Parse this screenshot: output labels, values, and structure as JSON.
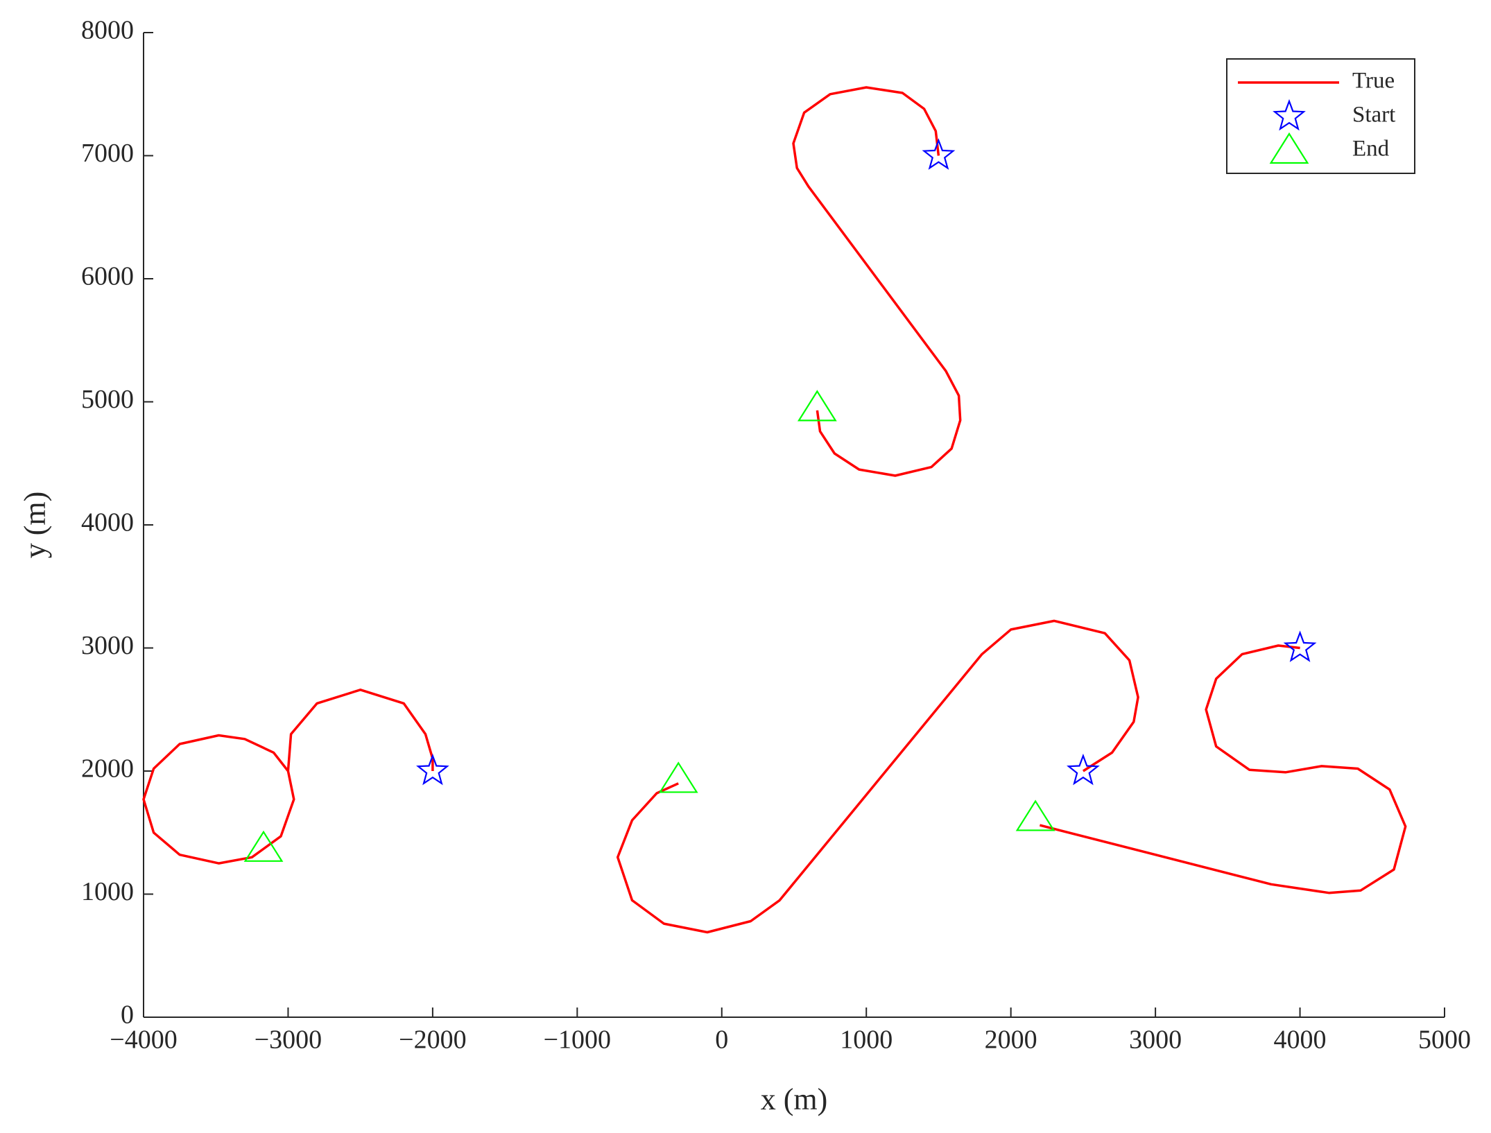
{
  "chart_data": {
    "type": "line",
    "xlabel": "x (m)",
    "ylabel": "y (m)",
    "xlim": [
      -4000,
      5000
    ],
    "xticks": [
      {
        "value": -4000,
        "label": "−4000"
      },
      {
        "value": -3000,
        "label": "−3000"
      },
      {
        "value": -2000,
        "label": "−2000"
      },
      {
        "value": -1000,
        "label": "−1000"
      },
      0,
      1000,
      2000,
      3000,
      4000,
      5000
    ],
    "ylim": [
      0,
      8000
    ],
    "yticks": [
      0,
      1000,
      2000,
      3000,
      4000,
      5000,
      6000,
      7000,
      8000
    ],
    "legend": "upper right",
    "series": [
      {
        "name": "True",
        "color": "#ff0000",
        "kind": "line",
        "x": [
          1500,
          1480,
          1400,
          1250,
          1000,
          750,
          570,
          495,
          520,
          600,
          1550,
          1640,
          1650,
          1590,
          1450,
          1200,
          950,
          780,
          680,
          660,
          null,
          -2000,
          -2000,
          -2050,
          -2200,
          -2500,
          -2800,
          -2980,
          -3000,
          -2960,
          -3050,
          -3250,
          -3480,
          -3750,
          -3930,
          -4000,
          -3930,
          -3750,
          -3480,
          -3300,
          -3100,
          -3000,
          null,
          2500,
          2700,
          2850,
          2880,
          2820,
          2650,
          2300,
          2000,
          1800,
          400,
          200,
          -100,
          -400,
          -620,
          -720,
          -620,
          -450,
          -300,
          null,
          4000,
          3850,
          3600,
          3420,
          3350,
          3420,
          3650,
          3900,
          4150,
          4400,
          4620,
          4730,
          4650,
          4420,
          4200,
          3800,
          2200
        ],
        "y": [
          7000,
          7200,
          7380,
          7510,
          7555,
          7500,
          7350,
          7100,
          6900,
          6750,
          5250,
          5050,
          4850,
          4620,
          4470,
          4400,
          4450,
          4580,
          4760,
          4930,
          null,
          2000,
          2100,
          2300,
          2550,
          2660,
          2550,
          2300,
          2000,
          1770,
          1470,
          1300,
          1250,
          1320,
          1500,
          1770,
          2020,
          2220,
          2290,
          2260,
          2150,
          2000,
          null,
          2000,
          2150,
          2400,
          2600,
          2900,
          3120,
          3220,
          3150,
          2950,
          950,
          780,
          690,
          760,
          950,
          1300,
          1600,
          1820,
          1900,
          null,
          3000,
          3020,
          2950,
          2750,
          2500,
          2200,
          2010,
          1990,
          2040,
          2020,
          1850,
          1550,
          1200,
          1030,
          1010,
          1080,
          1560
        ]
      },
      {
        "name": "Start",
        "color": "#0000ff",
        "kind": "star",
        "x": [
          1500,
          -2000,
          2500,
          4000
        ],
        "y": [
          7000,
          2000,
          2000,
          3000
        ]
      },
      {
        "name": "End",
        "color": "#00ff00",
        "kind": "triangle",
        "x": [
          660,
          -3170,
          -300,
          2170
        ],
        "y": [
          4950,
          1370,
          1930,
          1620
        ]
      }
    ]
  }
}
